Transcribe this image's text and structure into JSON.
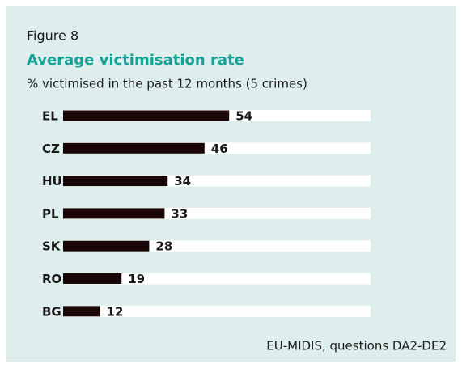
{
  "chart_data": {
    "type": "bar",
    "orientation": "horizontal",
    "figure_label": "Figure 8",
    "title": "Average victimisation rate",
    "subtitle": "% victimised in the past 12 months (5 crimes)",
    "source": "EU-MIDIS, questions DA2-DE2",
    "categories": [
      "EL",
      "CZ",
      "HU",
      "PL",
      "SK",
      "RO",
      "BG"
    ],
    "values": [
      54,
      46,
      34,
      33,
      28,
      19,
      12
    ],
    "color": "#1a0606",
    "xlim": [
      0,
      100
    ]
  }
}
